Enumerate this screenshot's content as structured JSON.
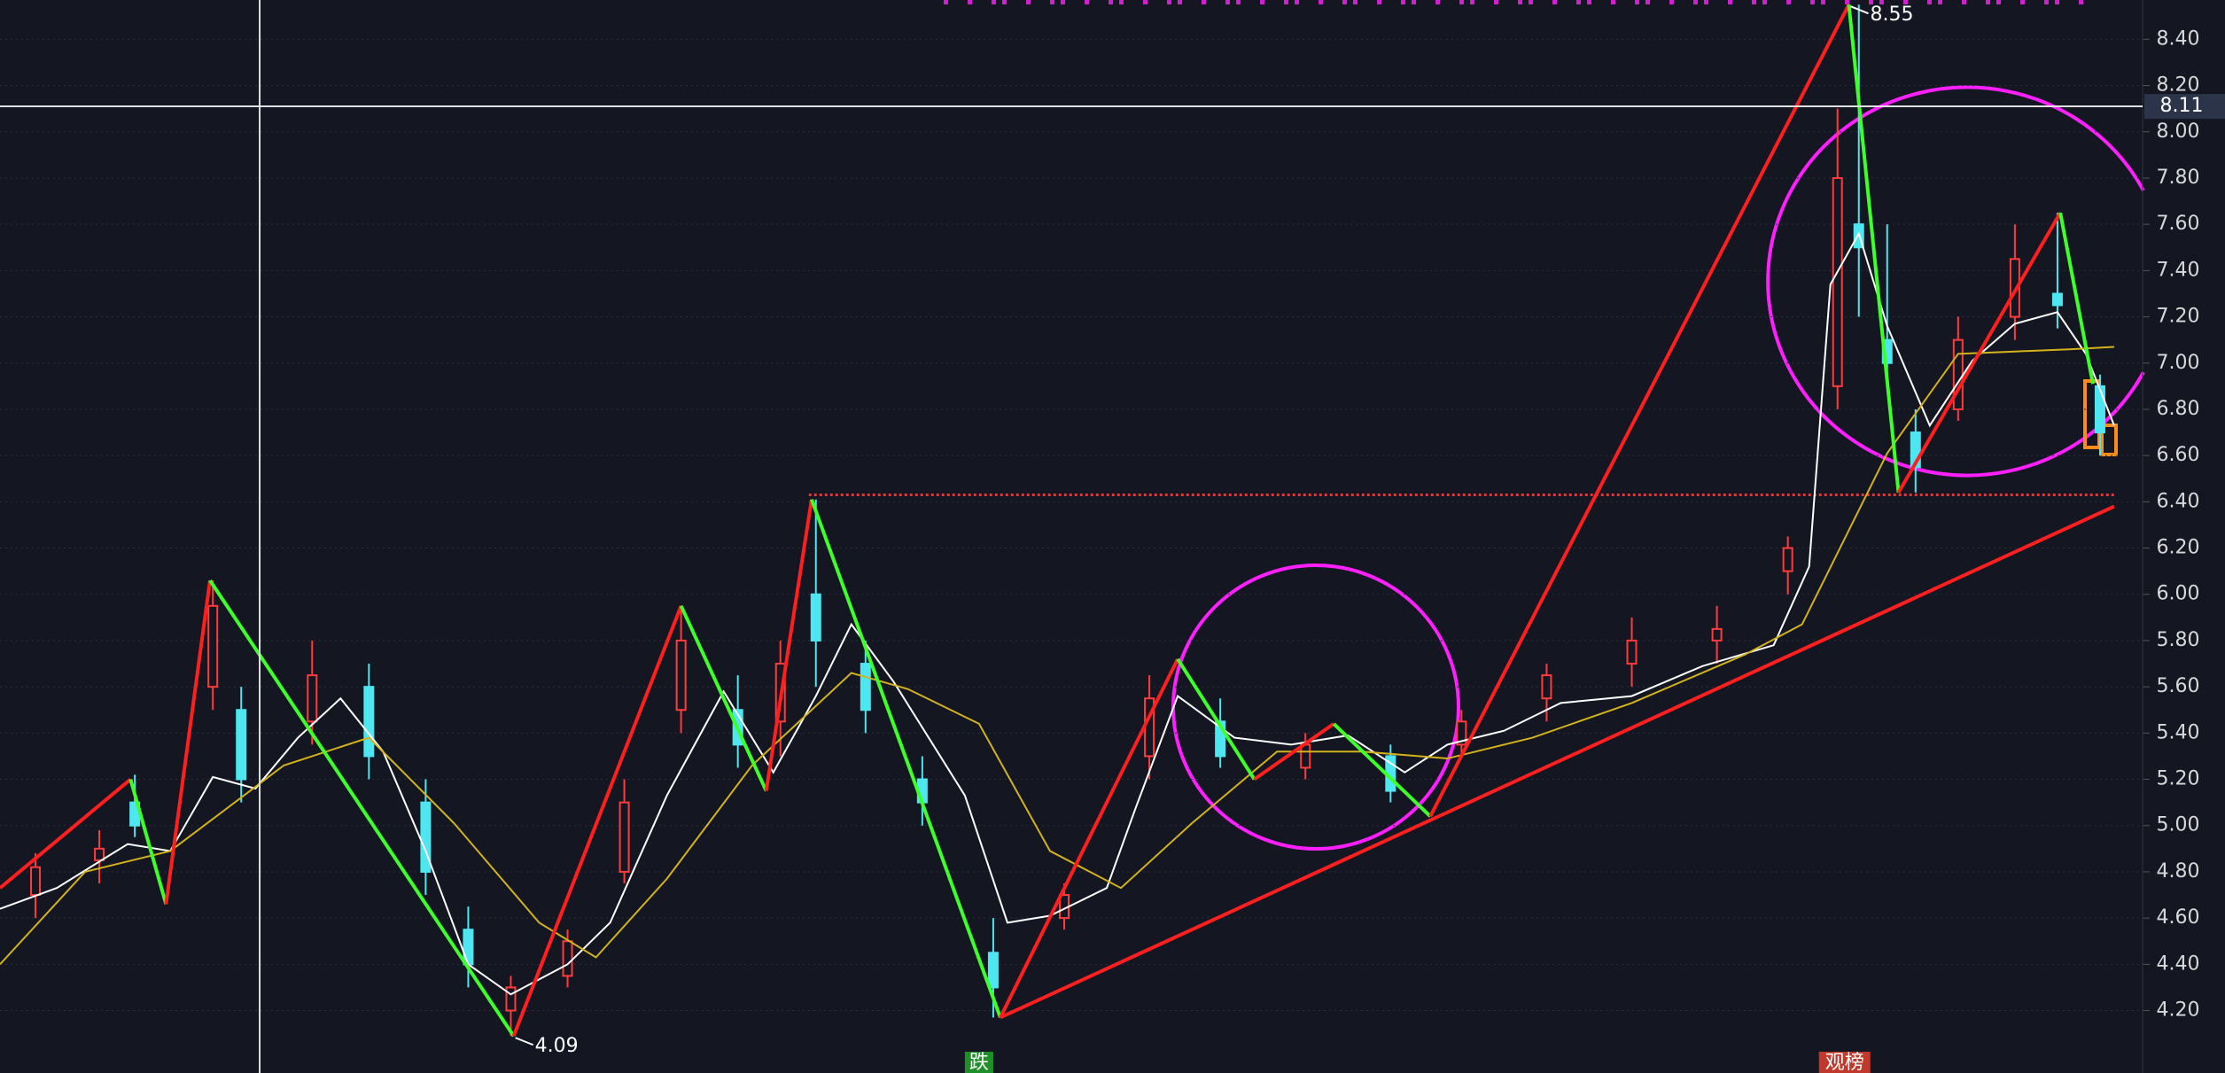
{
  "chart_data": {
    "type": "candlestick",
    "xlim": [
      0,
      302
    ],
    "ylim": [
      3.93,
      8.57
    ],
    "yticks": [
      {
        "value": 4.2,
        "label": "4.20"
      },
      {
        "value": 4.4,
        "label": "4.40"
      },
      {
        "value": 4.6,
        "label": "4.60"
      },
      {
        "value": 4.8,
        "label": "4.80"
      },
      {
        "value": 5.0,
        "label": "5.00"
      },
      {
        "value": 5.2,
        "label": "5.20"
      },
      {
        "value": 5.4,
        "label": "5.40"
      },
      {
        "value": 5.6,
        "label": "5.60"
      },
      {
        "value": 5.8,
        "label": "5.80"
      },
      {
        "value": 6.0,
        "label": "6.00"
      },
      {
        "value": 6.2,
        "label": "6.20"
      },
      {
        "value": 6.4,
        "label": "6.40"
      },
      {
        "value": 6.6,
        "label": "6.60"
      },
      {
        "value": 6.8,
        "label": "6.80"
      },
      {
        "value": 7.0,
        "label": "7.00"
      },
      {
        "value": 7.2,
        "label": "7.20"
      },
      {
        "value": 7.4,
        "label": "7.40"
      },
      {
        "value": 7.6,
        "label": "7.60"
      },
      {
        "value": 7.8,
        "label": "7.80"
      },
      {
        "value": 8.0,
        "label": "8.00"
      },
      {
        "value": 8.2,
        "label": "8.20"
      },
      {
        "value": 8.4,
        "label": "8.40"
      }
    ],
    "grid": true,
    "up_color": "#ff3b3b",
    "down_color": "#4ee6f0",
    "candles": [
      {
        "x": 5,
        "open": 4.7,
        "high": 4.88,
        "low": 4.6,
        "close": 4.82
      },
      {
        "x": 14,
        "open": 4.85,
        "high": 4.98,
        "low": 4.75,
        "close": 4.9
      },
      {
        "x": 19,
        "open": 5.1,
        "high": 5.22,
        "low": 4.95,
        "close": 5.0
      },
      {
        "x": 30,
        "open": 5.6,
        "high": 6.06,
        "low": 5.5,
        "close": 5.95
      },
      {
        "x": 34,
        "open": 5.5,
        "high": 5.6,
        "low": 5.1,
        "close": 5.2
      },
      {
        "x": 44,
        "open": 5.45,
        "high": 5.8,
        "low": 5.35,
        "close": 5.65
      },
      {
        "x": 52,
        "open": 5.6,
        "high": 5.7,
        "low": 5.2,
        "close": 5.3
      },
      {
        "x": 60,
        "open": 5.1,
        "high": 5.2,
        "low": 4.7,
        "close": 4.8
      },
      {
        "x": 66,
        "open": 4.55,
        "high": 4.65,
        "low": 4.3,
        "close": 4.4
      },
      {
        "x": 72,
        "open": 4.2,
        "high": 4.35,
        "low": 4.09,
        "close": 4.3
      },
      {
        "x": 80,
        "open": 4.35,
        "high": 4.55,
        "low": 4.3,
        "close": 4.5
      },
      {
        "x": 88,
        "open": 4.8,
        "high": 5.2,
        "low": 4.75,
        "close": 5.1
      },
      {
        "x": 96,
        "open": 5.5,
        "high": 5.95,
        "low": 5.4,
        "close": 5.8
      },
      {
        "x": 104,
        "open": 5.5,
        "high": 5.65,
        "low": 5.25,
        "close": 5.35
      },
      {
        "x": 110,
        "open": 5.45,
        "high": 5.8,
        "low": 5.3,
        "close": 5.7
      },
      {
        "x": 115,
        "open": 6.0,
        "high": 6.41,
        "low": 5.6,
        "close": 5.8
      },
      {
        "x": 122,
        "open": 5.7,
        "high": 5.8,
        "low": 5.4,
        "close": 5.5
      },
      {
        "x": 130,
        "open": 5.2,
        "high": 5.3,
        "low": 5.0,
        "close": 5.1
      },
      {
        "x": 140,
        "open": 4.45,
        "high": 4.6,
        "low": 4.17,
        "close": 4.3
      },
      {
        "x": 150,
        "open": 4.6,
        "high": 4.75,
        "low": 4.55,
        "close": 4.7
      },
      {
        "x": 162,
        "open": 5.3,
        "high": 5.65,
        "low": 5.2,
        "close": 5.55
      },
      {
        "x": 172,
        "open": 5.45,
        "high": 5.55,
        "low": 5.25,
        "close": 5.3
      },
      {
        "x": 184,
        "open": 5.25,
        "high": 5.4,
        "low": 5.2,
        "close": 5.35
      },
      {
        "x": 196,
        "open": 5.3,
        "high": 5.35,
        "low": 5.1,
        "close": 5.15
      },
      {
        "x": 206,
        "open": 5.35,
        "high": 5.5,
        "low": 5.3,
        "close": 5.45
      },
      {
        "x": 218,
        "open": 5.55,
        "high": 5.7,
        "low": 5.45,
        "close": 5.65
      },
      {
        "x": 230,
        "open": 5.7,
        "high": 5.9,
        "low": 5.6,
        "close": 5.8
      },
      {
        "x": 242,
        "open": 5.8,
        "high": 5.95,
        "low": 5.7,
        "close": 5.85
      },
      {
        "x": 252,
        "open": 6.1,
        "high": 6.25,
        "low": 6.0,
        "close": 6.2
      },
      {
        "x": 259,
        "open": 6.9,
        "high": 8.1,
        "low": 6.8,
        "close": 7.8
      },
      {
        "x": 262,
        "open": 7.6,
        "high": 8.55,
        "low": 7.2,
        "close": 7.5
      },
      {
        "x": 266,
        "open": 7.1,
        "high": 7.6,
        "low": 6.9,
        "close": 7.0
      },
      {
        "x": 270,
        "open": 6.7,
        "high": 6.8,
        "low": 6.44,
        "close": 6.55
      },
      {
        "x": 276,
        "open": 6.8,
        "high": 7.2,
        "low": 6.75,
        "close": 7.1
      },
      {
        "x": 284,
        "open": 7.2,
        "high": 7.6,
        "low": 7.1,
        "close": 7.45
      },
      {
        "x": 290,
        "open": 7.3,
        "high": 7.65,
        "low": 7.15,
        "close": 7.25
      },
      {
        "x": 296,
        "open": 6.9,
        "high": 6.95,
        "low": 6.6,
        "close": 6.7
      }
    ],
    "series": [
      {
        "color": "#ffffff",
        "x": [
          0,
          8,
          18,
          24,
          30,
          36,
          42,
          48,
          54,
          60,
          66,
          72,
          80,
          86,
          94,
          102,
          109,
          115,
          120,
          126,
          136,
          142,
          148,
          156,
          160,
          166,
          174,
          182,
          190,
          198,
          204,
          212,
          220,
          230,
          240,
          250,
          255,
          258,
          262,
          266,
          272,
          278,
          284,
          290,
          294,
          298
        ],
        "values": [
          4.64,
          4.73,
          4.92,
          4.89,
          5.21,
          5.16,
          5.38,
          5.55,
          5.32,
          4.89,
          4.4,
          4.27,
          4.4,
          4.58,
          5.13,
          5.58,
          5.23,
          5.56,
          5.87,
          5.62,
          5.13,
          4.58,
          4.61,
          4.73,
          5.07,
          5.56,
          5.38,
          5.35,
          5.39,
          5.23,
          5.35,
          5.41,
          5.53,
          5.56,
          5.69,
          5.78,
          6.12,
          7.34,
          7.56,
          7.16,
          6.73,
          7.01,
          7.17,
          7.22,
          7.04,
          6.73
        ]
      },
      {
        "color": "#d4b21c",
        "x": [
          0,
          12,
          24,
          40,
          52,
          64,
          76,
          84,
          94,
          106,
          120,
          128,
          138,
          148,
          158,
          168,
          180,
          192,
          204,
          216,
          230,
          246,
          254,
          260,
          266,
          276,
          284,
          292,
          298
        ],
        "values": [
          4.4,
          4.8,
          4.89,
          5.26,
          5.38,
          5.01,
          4.58,
          4.43,
          4.77,
          5.26,
          5.66,
          5.59,
          5.44,
          4.89,
          4.73,
          5.01,
          5.32,
          5.32,
          5.29,
          5.38,
          5.53,
          5.74,
          5.87,
          6.24,
          6.61,
          7.04,
          7.05,
          7.06,
          7.07
        ]
      }
    ],
    "zigzag": {
      "up_color": "#ff1f1f",
      "down_color": "#3dff2a",
      "x": [
        0,
        18.4,
        23.4,
        29.6,
        72.4,
        96,
        108,
        114.4,
        141,
        166,
        176.8,
        188,
        201.6,
        260.6,
        267.6,
        290.4,
        295
      ],
      "values": [
        4.73,
        5.2,
        4.66,
        6.06,
        4.09,
        5.95,
        5.15,
        6.41,
        4.17,
        5.72,
        5.2,
        5.44,
        5.04,
        8.55,
        6.44,
        7.65,
        6.91
      ]
    },
    "support_line": {
      "color": "#ff1f1f",
      "x": [
        141,
        298
      ],
      "values": [
        4.17,
        6.38
      ]
    },
    "resistance_level": {
      "color": "#ff2a2a",
      "x": [
        114,
        298
      ],
      "value": 6.43
    },
    "crosshair": {
      "x": 36.6,
      "y": 8.11
    },
    "markers": [
      {
        "x": 138,
        "text": "跌",
        "color": "#1f8f2a"
      },
      {
        "x": 260,
        "text": "观榜",
        "color": "#c0392b"
      }
    ]
  }
}
